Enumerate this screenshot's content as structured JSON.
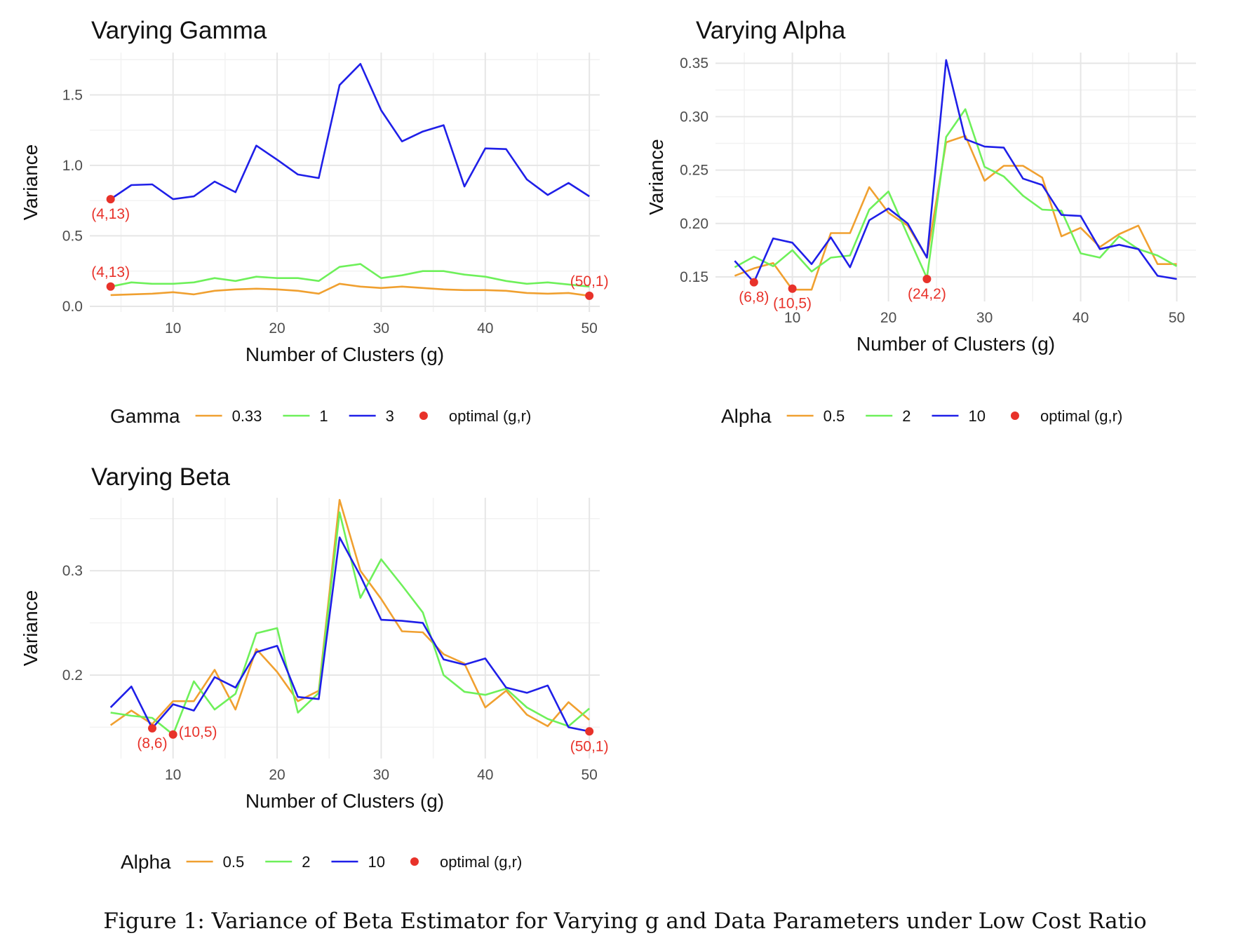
{
  "caption": "Figure 1: Variance of Beta Estimator for Varying g and Data Parameters under Low Cost Ratio",
  "chart_data": [
    {
      "type": "line",
      "title": "Varying Gamma",
      "xlabel": "Number of Clusters (g)",
      "ylabel": "Variance",
      "xlim": [
        2,
        51
      ],
      "ylim": [
        -0.04,
        1.8
      ],
      "xticks": [
        10,
        20,
        30,
        40,
        50
      ],
      "yticks": [
        0.0,
        0.5,
        1.0,
        1.5
      ],
      "ytick_labels": [
        "0.0",
        "0.5",
        "1.0",
        "1.5"
      ],
      "grid": true,
      "legend": {
        "title": "Gamma",
        "position": "bottom",
        "labels": [
          "0.33",
          "1",
          "3"
        ],
        "optimal_label": "optimal (g,r)"
      },
      "x": [
        4,
        6,
        8,
        10,
        12,
        14,
        16,
        18,
        20,
        22,
        24,
        26,
        28,
        30,
        32,
        34,
        36,
        38,
        40,
        42,
        44,
        46,
        48,
        50
      ],
      "series": [
        {
          "name": "0.33",
          "color": "#f0a030",
          "values": [
            0.08,
            0.085,
            0.09,
            0.1,
            0.085,
            0.11,
            0.12,
            0.125,
            0.12,
            0.11,
            0.09,
            0.16,
            0.14,
            0.13,
            0.14,
            0.13,
            0.12,
            0.115,
            0.115,
            0.11,
            0.095,
            0.09,
            0.095,
            0.075
          ]
        },
        {
          "name": "1",
          "color": "#6ef05a",
          "values": [
            0.14,
            0.17,
            0.16,
            0.16,
            0.17,
            0.2,
            0.18,
            0.21,
            0.2,
            0.2,
            0.18,
            0.28,
            0.3,
            0.2,
            0.22,
            0.25,
            0.25,
            0.225,
            0.21,
            0.18,
            0.16,
            0.17,
            0.155,
            0.14
          ]
        },
        {
          "name": "3",
          "color": "#1f1fe8",
          "values": [
            0.76,
            0.86,
            0.865,
            0.76,
            0.78,
            0.885,
            0.81,
            1.14,
            1.04,
            0.935,
            0.91,
            1.57,
            1.72,
            1.39,
            1.17,
            1.24,
            1.285,
            0.85,
            1.12,
            1.115,
            0.9,
            0.79,
            0.875,
            0.78
          ]
        }
      ],
      "optimal_points": [
        {
          "x": 4,
          "y": 0.76,
          "label": "(4,13)",
          "label_pos": "below"
        },
        {
          "x": 4,
          "y": 0.14,
          "label": "(4,13)",
          "label_pos": "above"
        },
        {
          "x": 50,
          "y": 0.075,
          "label": "(50,1)",
          "label_pos": "above"
        }
      ]
    },
    {
      "type": "line",
      "title": "Varying Alpha",
      "xlabel": "Number of Clusters (g)",
      "ylabel": "Variance",
      "xlim": [
        2,
        52
      ],
      "ylim": [
        0.127,
        0.36
      ],
      "xticks": [
        10,
        20,
        30,
        40,
        50
      ],
      "yticks": [
        0.15,
        0.2,
        0.25,
        0.3,
        0.35
      ],
      "ytick_labels": [
        "0.15",
        "0.20",
        "0.25",
        "0.30",
        "0.35"
      ],
      "grid": true,
      "legend": {
        "title": "Alpha",
        "position": "bottom",
        "labels": [
          "0.5",
          "2",
          "10"
        ],
        "optimal_label": "optimal (g,r)"
      },
      "x": [
        4,
        6,
        8,
        10,
        12,
        14,
        16,
        18,
        20,
        22,
        24,
        26,
        28,
        30,
        32,
        34,
        36,
        38,
        40,
        42,
        44,
        46,
        48,
        50
      ],
      "series": [
        {
          "name": "0.5",
          "color": "#f0a030",
          "values": [
            0.151,
            0.158,
            0.163,
            0.138,
            0.138,
            0.191,
            0.191,
            0.234,
            0.21,
            0.198,
            0.168,
            0.276,
            0.282,
            0.24,
            0.254,
            0.254,
            0.243,
            0.188,
            0.196,
            0.178,
            0.19,
            0.198,
            0.162,
            0.162
          ]
        },
        {
          "name": "2",
          "color": "#6ef05a",
          "values": [
            0.159,
            0.169,
            0.16,
            0.175,
            0.155,
            0.168,
            0.17,
            0.213,
            0.23,
            0.189,
            0.149,
            0.281,
            0.307,
            0.253,
            0.244,
            0.226,
            0.213,
            0.212,
            0.172,
            0.168,
            0.188,
            0.176,
            0.17,
            0.16
          ]
        },
        {
          "name": "10",
          "color": "#1f1fe8",
          "values": [
            0.165,
            0.145,
            0.186,
            0.182,
            0.162,
            0.187,
            0.159,
            0.203,
            0.214,
            0.2,
            0.168,
            0.353,
            0.279,
            0.272,
            0.271,
            0.242,
            0.236,
            0.208,
            0.207,
            0.176,
            0.18,
            0.176,
            0.151,
            0.148
          ]
        }
      ],
      "optimal_points": [
        {
          "x": 6,
          "y": 0.145,
          "label": "(6,8)",
          "label_pos": "below"
        },
        {
          "x": 10,
          "y": 0.139,
          "label": "(10,5)",
          "label_pos": "below"
        },
        {
          "x": 24,
          "y": 0.148,
          "label": "(24,2)",
          "label_pos": "below"
        }
      ]
    },
    {
      "type": "line",
      "title": "Varying Beta",
      "xlabel": "Number of Clusters (g)",
      "ylabel": "Variance",
      "xlim": [
        2,
        51
      ],
      "ylim": [
        0.12,
        0.37
      ],
      "xticks": [
        10,
        20,
        30,
        40,
        50
      ],
      "yticks": [
        0.2,
        0.3
      ],
      "ytick_labels": [
        "0.2",
        "0.3"
      ],
      "grid": true,
      "legend": {
        "title": "Alpha",
        "position": "bottom",
        "labels": [
          "0.5",
          "2",
          "10"
        ],
        "optimal_label": "optimal (g,r)"
      },
      "x": [
        4,
        6,
        8,
        10,
        12,
        14,
        16,
        18,
        20,
        22,
        24,
        26,
        28,
        30,
        32,
        34,
        36,
        38,
        40,
        42,
        44,
        46,
        48,
        50
      ],
      "series": [
        {
          "name": "0.5",
          "color": "#f0a030",
          "values": [
            0.152,
            0.166,
            0.153,
            0.175,
            0.175,
            0.205,
            0.167,
            0.225,
            0.203,
            0.175,
            0.185,
            0.368,
            0.3,
            0.273,
            0.242,
            0.241,
            0.22,
            0.211,
            0.169,
            0.185,
            0.162,
            0.151,
            0.174,
            0.157
          ]
        },
        {
          "name": "2",
          "color": "#6ef05a",
          "values": [
            0.164,
            0.161,
            0.159,
            0.143,
            0.194,
            0.167,
            0.182,
            0.24,
            0.245,
            0.164,
            0.183,
            0.356,
            0.274,
            0.311,
            0.286,
            0.26,
            0.2,
            0.184,
            0.181,
            0.187,
            0.169,
            0.158,
            0.151,
            0.168
          ]
        },
        {
          "name": "10",
          "color": "#1f1fe8",
          "values": [
            0.169,
            0.189,
            0.149,
            0.172,
            0.166,
            0.198,
            0.188,
            0.222,
            0.228,
            0.179,
            0.177,
            0.332,
            0.295,
            0.253,
            0.252,
            0.25,
            0.215,
            0.21,
            0.216,
            0.188,
            0.183,
            0.19,
            0.15,
            0.146
          ]
        }
      ],
      "optimal_points": [
        {
          "x": 8,
          "y": 0.149,
          "label": "(8,6)",
          "label_pos": "below"
        },
        {
          "x": 10,
          "y": 0.143,
          "label": "(10,5)",
          "label_pos": "right"
        },
        {
          "x": 50,
          "y": 0.146,
          "label": "(50,1)",
          "label_pos": "below"
        }
      ]
    }
  ]
}
